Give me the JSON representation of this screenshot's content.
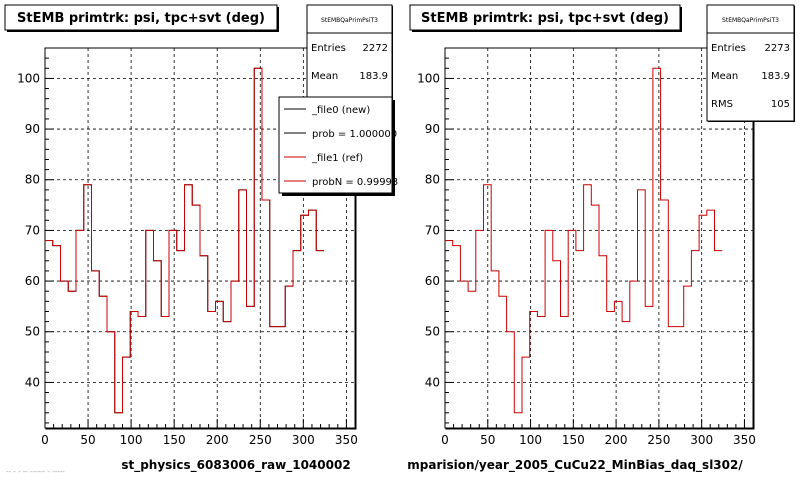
{
  "chart_data": [
    {
      "type": "line",
      "title": "StEMB primtrk: psi, tpc+svt (deg)",
      "xlabel": "st_physics_6083006_raw_1040002",
      "ylabel": "",
      "xlim": [
        0,
        360
      ],
      "ylim": [
        31,
        106
      ],
      "xticks": [
        0,
        50,
        100,
        150,
        200,
        250,
        300,
        350
      ],
      "yticks": [
        40,
        50,
        60,
        70,
        80,
        90,
        100
      ],
      "grid": true,
      "drawstyle": "steps",
      "bin_width": 9,
      "series": [
        {
          "name": "_file0 (new)",
          "color": "#000000",
          "values": [
            68,
            67,
            60,
            58,
            70,
            79,
            62,
            57,
            50,
            34,
            45,
            54,
            53,
            70,
            64,
            53,
            70,
            66,
            79,
            75,
            65,
            54,
            56,
            52,
            60,
            78,
            55,
            102,
            76,
            51,
            51,
            59,
            66,
            73,
            74,
            66
          ]
        },
        {
          "name": "_file1 (ref)",
          "color": "#cc0000",
          "values": [
            68,
            67,
            60,
            58,
            70,
            79,
            62,
            57,
            50,
            34,
            45,
            54,
            53,
            70,
            64,
            53,
            70,
            66,
            79,
            75,
            65,
            54,
            56,
            52,
            60,
            78,
            55,
            102,
            76,
            51,
            51,
            59,
            66,
            73,
            74,
            66
          ]
        }
      ],
      "stats": {
        "header": "StEMBQaPrimPsiT3",
        "rows": [
          {
            "label": "Entries",
            "value": "2272"
          },
          {
            "label": "Mean",
            "value": "183.9"
          }
        ]
      },
      "legend": {
        "position": "top-right",
        "entries": [
          {
            "text": "_file0 (new)",
            "color": "#000000"
          },
          {
            "text": "prob = 1.000000",
            "color": "#000000"
          },
          {
            "text": "_file1 (ref)",
            "color": "#cc0000"
          },
          {
            "text": "probN = 0.99993",
            "color": "#cc0000"
          }
        ]
      }
    },
    {
      "type": "line",
      "title": "StEMB primtrk: psi, tpc+svt (deg)",
      "xlabel": "mparision/year_2005_CuCu22_MinBias_daq_sl302/",
      "ylabel": "",
      "xlim": [
        0,
        360
      ],
      "ylim": [
        31,
        106
      ],
      "xticks": [
        0,
        50,
        100,
        150,
        200,
        250,
        300,
        350
      ],
      "yticks": [
        40,
        50,
        60,
        70,
        80,
        90,
        100
      ],
      "grid": true,
      "drawstyle": "steps",
      "bin_width": 9,
      "series": [
        {
          "color": "#cc0000",
          "values": [
            68,
            67,
            60,
            58,
            70,
            79,
            62,
            57,
            50,
            34,
            45,
            54,
            53,
            70,
            64,
            53,
            70,
            66,
            79,
            75,
            65,
            54,
            56,
            52,
            60,
            78,
            55,
            102,
            76,
            51,
            51,
            59,
            66,
            73,
            74,
            66
          ]
        }
      ],
      "stats": {
        "header": "StEMBQaPrimPsiT3",
        "rows": [
          {
            "label": "Entries",
            "value": "2273"
          },
          {
            "label": "Mean",
            "value": "183.9"
          },
          {
            "label": "RMS",
            "value": "105"
          }
        ]
      }
    }
  ],
  "footer_text": "-- - - -- ------ - -----"
}
